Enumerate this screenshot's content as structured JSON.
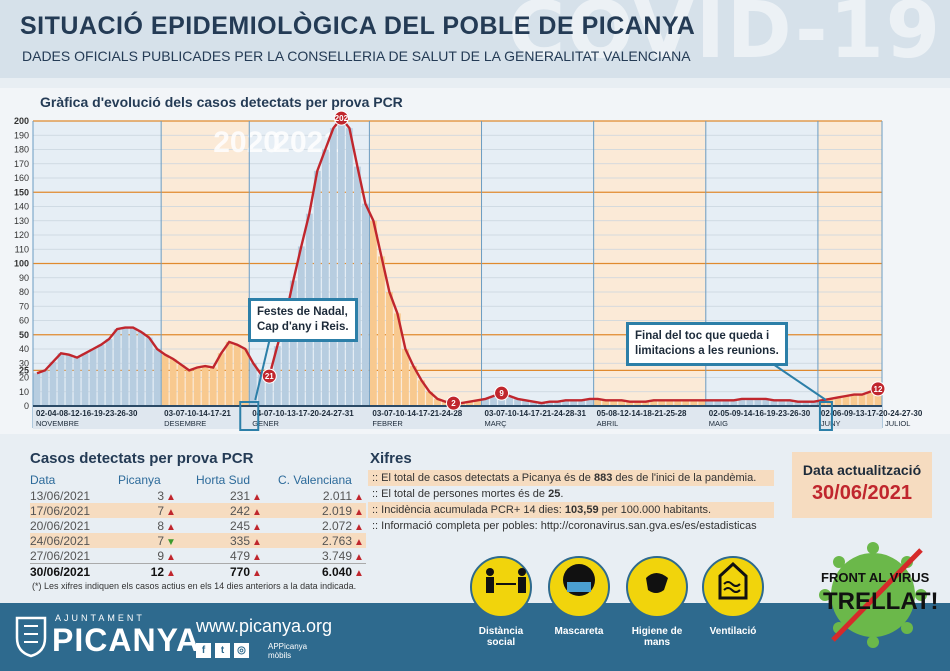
{
  "header": {
    "title": "SITUACIÓ EPIDEMIOLÒGICA DEL POBLE DE PICANYA",
    "subtitle": "DADES OFICIALS PUBLICADES PER LA CONSELLERIA DE SALUT DE LA GENERALITAT VALENCIANA",
    "watermark": "COVID-19"
  },
  "chart_data": {
    "type": "bar",
    "title": "Gràfica d'evolució dels casos detectats per prova PCR",
    "year_labels": [
      "2020",
      "2021"
    ],
    "ylim": [
      0,
      200
    ],
    "yticks": [
      0,
      10,
      20,
      25,
      30,
      40,
      50,
      60,
      70,
      80,
      90,
      100,
      110,
      120,
      130,
      140,
      150,
      160,
      170,
      180,
      190,
      200
    ],
    "values": [
      23,
      25,
      31,
      37,
      36,
      34,
      37,
      40,
      43,
      47,
      54,
      55,
      55,
      52,
      48,
      40,
      36,
      33,
      29,
      25,
      27,
      28,
      27,
      37,
      45,
      43,
      40,
      30,
      22,
      21,
      42,
      62,
      88,
      112,
      135,
      165,
      180,
      195,
      202,
      195,
      168,
      142,
      130,
      105,
      80,
      65,
      40,
      28,
      18,
      10,
      5,
      3,
      2,
      2,
      3,
      4,
      5,
      7,
      9,
      7,
      5,
      4,
      3,
      2,
      3,
      3,
      4,
      4,
      4,
      5,
      5,
      4,
      4,
      4,
      3,
      3,
      3,
      4,
      4,
      4,
      4,
      4,
      4,
      4,
      4,
      4,
      4,
      4,
      5,
      5,
      5,
      5,
      4,
      4,
      4,
      3,
      3,
      3,
      4,
      5,
      6,
      7,
      8,
      8,
      10,
      12
    ],
    "point_labels": [
      {
        "index": 29,
        "value": 21
      },
      {
        "index": 38,
        "value": 202
      },
      {
        "index": 52,
        "value": 2
      },
      {
        "index": 58,
        "value": 9
      },
      {
        "index": 105,
        "value": 12
      }
    ],
    "months": [
      {
        "name": "NOVEMBRE",
        "ticks": "02-04-08-12-16-19-23-26-30",
        "start": 0,
        "end": 16
      },
      {
        "name": "DESEMBRE",
        "ticks": "03-07-10-14-17-21",
        "start": 16,
        "end": 27
      },
      {
        "name": "GENER",
        "ticks": "04-07-10-13-17-20-24-27-31",
        "start": 27,
        "end": 42
      },
      {
        "name": "FEBRER",
        "ticks": "03-07-10-14-17-21-24-28",
        "start": 42,
        "end": 56
      },
      {
        "name": "MARÇ",
        "ticks": "03-07-10-14-17-21-24-28-31",
        "start": 56,
        "end": 70
      },
      {
        "name": "ABRIL",
        "ticks": "05-08-12-14-18-21-25-28",
        "start": 70,
        "end": 84
      },
      {
        "name": "MAIG",
        "ticks": "02-05-09-14-16-19-23-26-30",
        "start": 84,
        "end": 98
      },
      {
        "name": "JUNY",
        "ticks": "02-06-09-13-17-20-24-27-30",
        "start": 98,
        "end": 106
      },
      {
        "name": "JULIOL",
        "ticks": "",
        "start": 106,
        "end": 106
      }
    ],
    "annotations": [
      {
        "text_line1": "Festes de Nadal,",
        "text_line2": "Cap d'any i Reis."
      },
      {
        "text_line1": "Final del toc que queda i",
        "text_line2": "limitacions a les reunions."
      }
    ]
  },
  "cases": {
    "title": "Casos detectats per prova PCR",
    "headers": [
      "Data",
      "Picanya",
      "Horta Sud",
      "C. Valenciana"
    ],
    "rows": [
      {
        "date": "13/06/2021",
        "picanya": "3",
        "p_dir": "up",
        "horta": "231",
        "h_dir": "up",
        "cv": "2.011",
        "c_dir": "up"
      },
      {
        "date": "17/06/2021",
        "picanya": "7",
        "p_dir": "up",
        "horta": "242",
        "h_dir": "up",
        "cv": "2.019",
        "c_dir": "up"
      },
      {
        "date": "20/06/2021",
        "picanya": "8",
        "p_dir": "up",
        "horta": "245",
        "h_dir": "up",
        "cv": "2.072",
        "c_dir": "up"
      },
      {
        "date": "24/06/2021",
        "picanya": "7",
        "p_dir": "down",
        "horta": "335",
        "h_dir": "up",
        "cv": "2.763",
        "c_dir": "up"
      },
      {
        "date": "27/06/2021",
        "picanya": "9",
        "p_dir": "up",
        "horta": "479",
        "h_dir": "up",
        "cv": "3.749",
        "c_dir": "up"
      },
      {
        "date": "30/06/2021",
        "picanya": "12",
        "p_dir": "up",
        "horta": "770",
        "h_dir": "up",
        "cv": "6.040",
        "c_dir": "up"
      }
    ],
    "note": "(*) Les xifres indiquen els casos actius en els 14 dies anteriors a la data indicada."
  },
  "xifres": {
    "title": "Xifres",
    "line1_a": ":: El total de casos detectats a Picanya és de ",
    "line1_b": "883",
    "line1_c": " des de l'inici de la pandèmia.",
    "line2_a": ":: El total de persones mortes és de ",
    "line2_b": "25",
    "line2_c": ".",
    "line3_a": ":: Incidència acumulada PCR+ 14 dies: ",
    "line3_b": "103,59",
    "line3_c": " per 100.000 habitants.",
    "line4": ":: Informació completa per pobles: http://coronavirus.san.gva.es/es/estadisticas"
  },
  "update": {
    "label": "Data actualització",
    "date": "30/06/2021"
  },
  "footer": {
    "ajuntament": "AJUNTAMENT",
    "town": "PICANYA",
    "web": "www.picanya.org",
    "app_line1": "APPicanya",
    "app_line2": "mòbils",
    "prevention": [
      "Distància social",
      "Mascareta",
      "Higiene de mans",
      "Ventilació"
    ],
    "virus_line1": "FRONT AL VIRUS",
    "virus_line2": "TRELLAT!"
  },
  "colors": {
    "accent_red": "#c0262d",
    "navy": "#243b55",
    "blue_bar": "#b7cde0",
    "orange_bar": "#f8c98f",
    "footer_blue": "#2e6a8e",
    "yellow": "#f1d40c"
  }
}
